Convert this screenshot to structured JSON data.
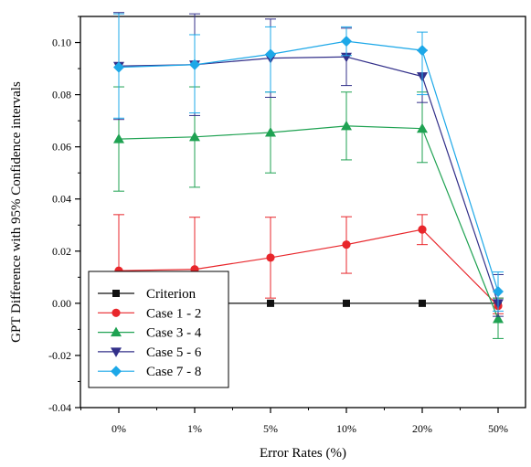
{
  "chart_data": {
    "type": "line",
    "title": "",
    "xlabel": "Error Rates (%)",
    "ylabel": "GPT Difference with 95% Confidence intervals",
    "categories": [
      "0%",
      "1%",
      "5%",
      "10%",
      "20%",
      "50%"
    ],
    "ylim": [
      -0.04,
      0.11
    ],
    "yticks": [
      "-0.04",
      "-0.02",
      "0.00",
      "0.02",
      "0.04",
      "0.06",
      "0.08",
      "0.10"
    ],
    "ytick_values": [
      -0.04,
      -0.02,
      0.0,
      0.02,
      0.04,
      0.06,
      0.08,
      0.1
    ],
    "grid": false,
    "legend_position": "bottom-left",
    "series": [
      {
        "name": "Criterion",
        "color": "#111111",
        "marker": "square",
        "values": [
          0.0,
          0.0,
          0.0,
          0.0,
          0.0,
          0.0
        ],
        "err_low": [
          0.0,
          0.0,
          0.0,
          0.0,
          0.0,
          0.0
        ],
        "err_high": [
          0.0,
          0.0,
          0.0,
          0.0,
          0.0,
          0.0
        ]
      },
      {
        "name": "Case 1 - 2",
        "color": "#e8262b",
        "marker": "circle",
        "values": [
          0.0125,
          0.013,
          0.0175,
          0.0225,
          0.0283,
          -0.001
        ],
        "err_low": [
          -0.005,
          -0.005,
          0.002,
          0.0115,
          0.0225,
          -0.004
        ],
        "err_high": [
          0.034,
          0.033,
          0.033,
          0.0332,
          0.034,
          0.002
        ]
      },
      {
        "name": "Case 3 - 4",
        "color": "#1fa252",
        "marker": "triangle-up",
        "values": [
          0.063,
          0.0638,
          0.0655,
          0.068,
          0.067,
          -0.006
        ],
        "err_low": [
          0.043,
          0.0445,
          0.05,
          0.055,
          0.054,
          -0.0135
        ],
        "err_high": [
          0.083,
          0.083,
          0.081,
          0.081,
          0.081,
          0.002
        ]
      },
      {
        "name": "Case 5 - 6",
        "color": "#33308a",
        "marker": "triangle-down",
        "values": [
          0.091,
          0.0915,
          0.094,
          0.0945,
          0.087,
          0.0
        ],
        "err_low": [
          0.0705,
          0.072,
          0.079,
          0.0835,
          0.077,
          -0.005
        ],
        "err_high": [
          0.1115,
          0.111,
          0.109,
          0.1055,
          0.097,
          0.011
        ]
      },
      {
        "name": "Case 7 - 8",
        "color": "#1da8e8",
        "marker": "diamond",
        "values": [
          0.0905,
          0.0915,
          0.0955,
          0.1005,
          0.097,
          0.0045
        ],
        "err_low": [
          0.071,
          0.073,
          0.081,
          0.095,
          0.08,
          -0.003
        ],
        "err_high": [
          0.111,
          0.103,
          0.106,
          0.106,
          0.104,
          0.012
        ]
      }
    ]
  }
}
